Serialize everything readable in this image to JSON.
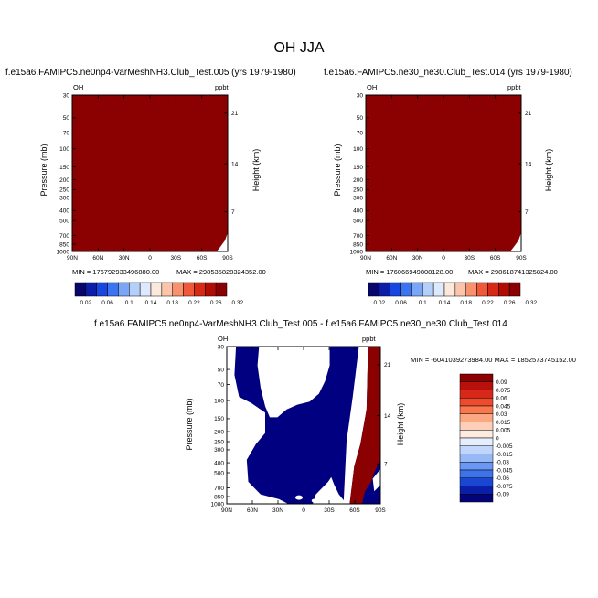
{
  "page": {
    "title": "OH JJA"
  },
  "chart_data": [
    {
      "type": "heatmap",
      "title": "f.e15a6.FAMIPC5.ne0np4-VarMeshNH3.Club_Test.005 (yrs 1979-1980)",
      "left_label": "OH",
      "right_label": "ppbt",
      "xlabel": "",
      "ylabel": "Pressure (mb)",
      "ylabel_right": "Height (km)",
      "x_ticks": [
        "90N",
        "60N",
        "30N",
        "0",
        "30S",
        "60S",
        "90S"
      ],
      "y_ticks": [
        "30",
        "50",
        "70",
        "100",
        "150",
        "200",
        "250",
        "300",
        "400",
        "500",
        "700",
        "850",
        "1000"
      ],
      "y_ticks_right": [
        "21",
        "14",
        "7"
      ],
      "min_text": "MIN = 176792933496880.00",
      "max_text": "MAX = 298535828324352.00",
      "fill_color": "#8b0000",
      "colorbar": {
        "labels": [
          "0.02",
          "0.06",
          "0.1",
          "0.14",
          "0.18",
          "0.22",
          "0.26",
          "0.32"
        ],
        "colors": [
          "#06066c",
          "#0a1ea8",
          "#1846e0",
          "#3a74f3",
          "#79a6f7",
          "#b4cffa",
          "#dde9fc",
          "#fde8dc",
          "#fcc4a8",
          "#f9906e",
          "#f0583a",
          "#d62a14",
          "#b10d05",
          "#8b0000"
        ]
      }
    },
    {
      "type": "heatmap",
      "title": "f.e15a6.FAMIPC5.ne30_ne30.Club_Test.014 (yrs 1979-1980)",
      "left_label": "OH",
      "right_label": "ppbt",
      "xlabel": "",
      "ylabel": "Pressure (mb)",
      "ylabel_right": "Height (km)",
      "x_ticks": [
        "90N",
        "60N",
        "30N",
        "0",
        "30S",
        "60S",
        "90S"
      ],
      "y_ticks": [
        "30",
        "50",
        "70",
        "100",
        "150",
        "200",
        "250",
        "300",
        "400",
        "500",
        "700",
        "850",
        "1000"
      ],
      "y_ticks_right": [
        "21",
        "14",
        "7"
      ],
      "min_text": "MIN = 176066949808128.00",
      "max_text": "MAX = 298618741325824.00",
      "fill_color": "#8b0000",
      "colorbar": {
        "labels": [
          "0.02",
          "0.06",
          "0.1",
          "0.14",
          "0.18",
          "0.22",
          "0.26",
          "0.32"
        ],
        "colors": [
          "#06066c",
          "#0a1ea8",
          "#1846e0",
          "#3a74f3",
          "#79a6f7",
          "#b4cffa",
          "#dde9fc",
          "#fde8dc",
          "#fcc4a8",
          "#f9906e",
          "#f0583a",
          "#d62a14",
          "#b10d05",
          "#8b0000"
        ]
      }
    },
    {
      "type": "heatmap",
      "title": "f.e15a6.FAMIPC5.ne0np4-VarMeshNH3.Club_Test.005 - f.e15a6.FAMIPC5.ne30_ne30.Club_Test.014",
      "left_label": "OH",
      "right_label": "ppbt",
      "xlabel": "",
      "ylabel": "Pressure (mb)",
      "ylabel_right": "Height (km)",
      "x_ticks": [
        "90N",
        "60N",
        "30N",
        "0",
        "30S",
        "60S",
        "90S"
      ],
      "y_ticks": [
        "30",
        "50",
        "70",
        "100",
        "150",
        "200",
        "250",
        "300",
        "400",
        "500",
        "700",
        "850",
        "1000"
      ],
      "y_ticks_right": [
        "21",
        "14",
        "7"
      ],
      "minmax_text": "MIN = -6041039273984.00  MAX = 1852573745152.00",
      "colors": {
        "negative": "#000080",
        "positive": "#8b0000"
      },
      "colorbar": {
        "labels": [
          "0.09",
          "0.075",
          "0.06",
          "0.045",
          "0.03",
          "0.015",
          "0.005",
          "0",
          "-0.005",
          "-0.015",
          "-0.03",
          "-0.045",
          "-0.06",
          "-0.075",
          "-0.09"
        ],
        "colors": [
          "#8b0000",
          "#b8100a",
          "#d8281a",
          "#ee4a2e",
          "#f8784e",
          "#fba882",
          "#fdcfb8",
          "#fdebe0",
          "#e4eefc",
          "#c0d6fa",
          "#96b9f6",
          "#6a98f2",
          "#3e72ea",
          "#1a46d4",
          "#0a1ea8",
          "#04047a"
        ]
      }
    }
  ]
}
